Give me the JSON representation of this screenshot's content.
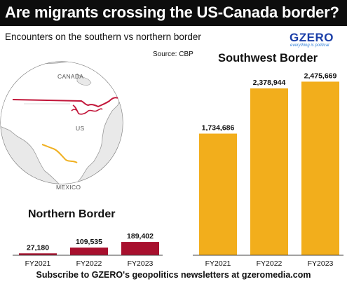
{
  "header": {
    "title": "Are migrants crossing the US-Canada border?",
    "subtitle": "Encounters on the southern vs northern border",
    "source": "Source: CBP"
  },
  "logo": {
    "name": "GZERO",
    "tagline": "everything is political"
  },
  "map": {
    "labels": {
      "canada": "CANADA",
      "us": "US",
      "mexico": "MEXICO"
    },
    "colors": {
      "northern_border": "#c2163a",
      "southern_border": "#f0b020"
    }
  },
  "footer": {
    "text": "Subscribe to GZERO's geopolitics newsletters at gzeromedia.com"
  },
  "chart_data": [
    {
      "type": "bar",
      "title": "Northern Border",
      "categories": [
        "FY2021",
        "FY2022",
        "FY2023"
      ],
      "values": [
        27180,
        109535,
        189402
      ],
      "value_labels": [
        "27,180",
        "109,535",
        "189,402"
      ],
      "color": "#a8102e",
      "ylim": [
        0,
        2600000
      ]
    },
    {
      "type": "bar",
      "title": "Southwest Border",
      "categories": [
        "FY2021",
        "FY2022",
        "FY2023"
      ],
      "values": [
        1734686,
        2378944,
        2475669
      ],
      "value_labels": [
        "1,734,686",
        "2,378,944",
        "2,475,669"
      ],
      "color": "#f2ae1c",
      "ylim": [
        0,
        2600000
      ]
    }
  ]
}
